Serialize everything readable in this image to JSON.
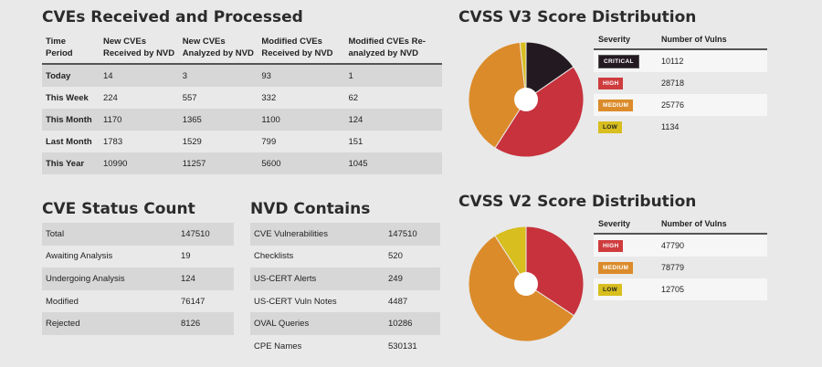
{
  "received": {
    "title": "CVEs Received and Processed",
    "headers": [
      [
        "Time",
        "Period"
      ],
      [
        "New CVEs",
        "Received by NVD"
      ],
      [
        "New CVEs",
        "Analyzed by NVD"
      ],
      [
        "Modified CVEs",
        "Received by NVD"
      ],
      [
        "Modified CVEs Re-",
        "analyzed by NVD"
      ]
    ],
    "rows": [
      [
        "Today",
        "14",
        "3",
        "93",
        "1"
      ],
      [
        "This Week",
        "224",
        "557",
        "332",
        "62"
      ],
      [
        "This Month",
        "1170",
        "1365",
        "1100",
        "124"
      ],
      [
        "Last Month",
        "1783",
        "1529",
        "799",
        "151"
      ],
      [
        "This Year",
        "10990",
        "11257",
        "5600",
        "1045"
      ]
    ]
  },
  "status": {
    "title": "CVE Status Count",
    "rows": [
      [
        "Total",
        "147510"
      ],
      [
        "Awaiting Analysis",
        "19"
      ],
      [
        "Undergoing Analysis",
        "124"
      ],
      [
        "Modified",
        "76147"
      ],
      [
        "Rejected",
        "8126"
      ]
    ]
  },
  "nvd": {
    "title": "NVD Contains",
    "rows": [
      [
        "CVE Vulnerabilities",
        "147510"
      ],
      [
        "Checklists",
        "520"
      ],
      [
        "US-CERT Alerts",
        "249"
      ],
      [
        "US-CERT Vuln Notes",
        "4487"
      ],
      [
        "OVAL Queries",
        "10286"
      ],
      [
        "CPE Names",
        "530131"
      ]
    ]
  },
  "v3": {
    "title": "CVSS V3 Score Distribution",
    "col_severity": "Severity",
    "col_number": "Number of Vulns",
    "rows": [
      {
        "label": "CRITICAL",
        "value": "10112",
        "cls": "b-critical"
      },
      {
        "label": "HIGH",
        "value": "28718",
        "cls": "b-high"
      },
      {
        "label": "MEDIUM",
        "value": "25776",
        "cls": "b-medium"
      },
      {
        "label": "LOW",
        "value": "1134",
        "cls": "b-low"
      }
    ]
  },
  "v2": {
    "title": "CVSS V2 Score Distribution",
    "col_severity": "Severity",
    "col_number": "Number of Vulns",
    "rows": [
      {
        "label": "HIGH",
        "value": "47790",
        "cls": "b-high"
      },
      {
        "label": "MEDIUM",
        "value": "78779",
        "cls": "b-medium"
      },
      {
        "label": "LOW",
        "value": "12705",
        "cls": "b-low"
      }
    ]
  },
  "chart_data": [
    {
      "type": "pie",
      "title": "CVSS V3 Score Distribution",
      "categories": [
        "CRITICAL",
        "HIGH",
        "MEDIUM",
        "LOW"
      ],
      "values": [
        10112,
        28718,
        25776,
        1134
      ],
      "colors": [
        "#231a21",
        "#c7323c",
        "#db8b2a",
        "#d8be1e"
      ]
    },
    {
      "type": "pie",
      "title": "CVSS V2 Score Distribution",
      "categories": [
        "HIGH",
        "MEDIUM",
        "LOW"
      ],
      "values": [
        47790,
        78779,
        12705
      ],
      "colors": [
        "#c7323c",
        "#db8b2a",
        "#d8be1e"
      ]
    }
  ]
}
